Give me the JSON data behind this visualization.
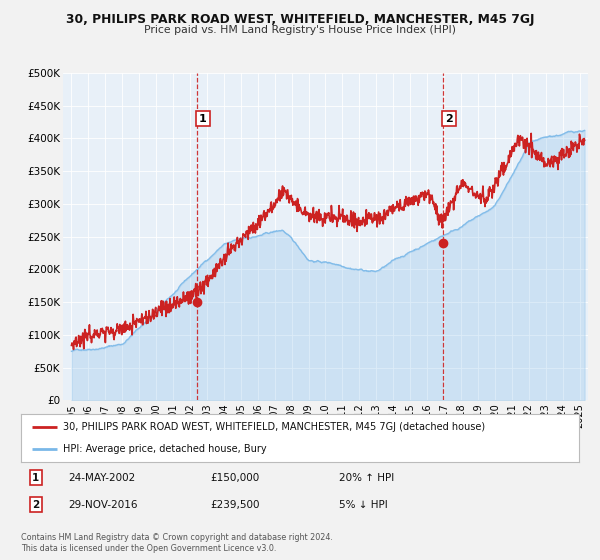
{
  "title1": "30, PHILIPS PARK ROAD WEST, WHITEFIELD, MANCHESTER, M45 7GJ",
  "title2": "Price paid vs. HM Land Registry's House Price Index (HPI)",
  "xlim": [
    1994.5,
    2025.5
  ],
  "ylim": [
    0,
    500000
  ],
  "yticks": [
    0,
    50000,
    100000,
    150000,
    200000,
    250000,
    300000,
    350000,
    400000,
    450000,
    500000
  ],
  "ytick_labels": [
    "£0",
    "£50K",
    "£100K",
    "£150K",
    "£200K",
    "£250K",
    "£300K",
    "£350K",
    "£400K",
    "£450K",
    "£500K"
  ],
  "xticks": [
    1995,
    1996,
    1997,
    1998,
    1999,
    2000,
    2001,
    2002,
    2003,
    2004,
    2005,
    2006,
    2007,
    2008,
    2009,
    2010,
    2011,
    2012,
    2013,
    2014,
    2015,
    2016,
    2017,
    2018,
    2019,
    2020,
    2021,
    2022,
    2023,
    2024,
    2025
  ],
  "sale1_x": 2002.39,
  "sale1_y": 150000,
  "sale2_x": 2016.91,
  "sale2_y": 239500,
  "line1_color": "#cc2222",
  "line2_color": "#7ab8e8",
  "background_color": "#f2f2f2",
  "plot_bg_color": "#e8f0f8",
  "grid_color": "#d0d8e0",
  "legend1_text": "30, PHILIPS PARK ROAD WEST, WHITEFIELD, MANCHESTER, M45 7GJ (detached house)",
  "legend2_text": "HPI: Average price, detached house, Bury",
  "sale1_date": "24-MAY-2002",
  "sale1_price": "£150,000",
  "sale1_hpi": "20% ↑ HPI",
  "sale2_date": "29-NOV-2016",
  "sale2_price": "£239,500",
  "sale2_hpi": "5% ↓ HPI",
  "footer_text": "Contains HM Land Registry data © Crown copyright and database right 2024.\nThis data is licensed under the Open Government Licence v3.0."
}
